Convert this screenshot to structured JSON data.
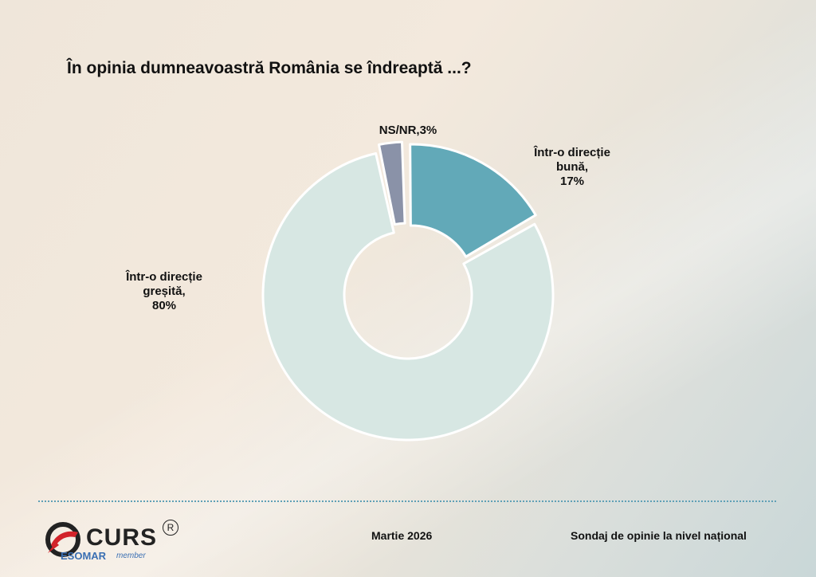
{
  "chart_data": {
    "type": "pie",
    "donut": true,
    "title": "În opinia dumneavoastră România se îndreaptă ...?",
    "slices": [
      {
        "lines": [
          "NS/NR,3%"
        ],
        "label": "NS/NR",
        "value": 3,
        "color": "#8a92a8"
      },
      {
        "lines": [
          "Într-o direcție",
          "bună,",
          "17%"
        ],
        "label": "Într-o direcție bună",
        "value": 17,
        "color": "#62a9b8"
      },
      {
        "lines": [
          "Într-o direcție",
          "greșită,",
          "80%"
        ],
        "label": "Într-o direcție greșită",
        "value": 80,
        "color": "#d7e7e3"
      }
    ]
  },
  "footer": {
    "brand": "CURS",
    "registered": "R",
    "esomar": "ESOMAR",
    "esomar_member": "member",
    "date": "Martie 2026",
    "survey": "Sondaj de opinie la nivel național"
  }
}
